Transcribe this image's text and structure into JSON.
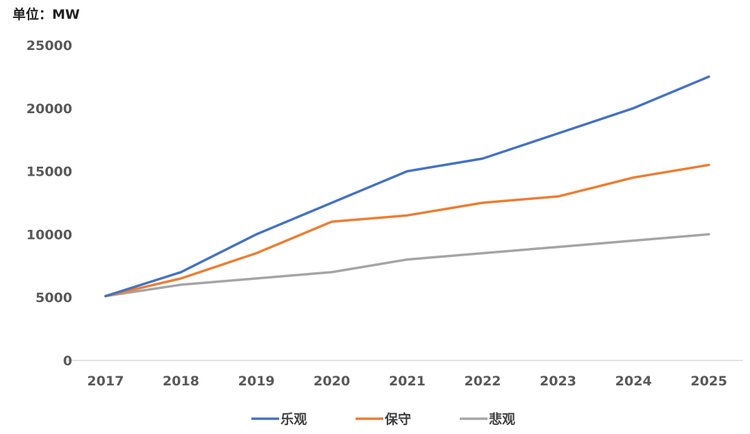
{
  "chart_data": {
    "type": "line",
    "unit_label": "单位：MW",
    "title": "",
    "xlabel": "",
    "ylabel": "",
    "categories": [
      "2017",
      "2018",
      "2019",
      "2020",
      "2021",
      "2022",
      "2023",
      "2024",
      "2025"
    ],
    "ylim": [
      0,
      25000
    ],
    "yticks": [
      0,
      5000,
      10000,
      15000,
      20000,
      25000
    ],
    "ytick_labels": [
      "0",
      "5000",
      "10000",
      "15000",
      "20000",
      "25000"
    ],
    "grid": false,
    "legend_position": "bottom",
    "series": [
      {
        "name": "乐观",
        "color": "#4472C4",
        "values": [
          5100,
          7000,
          10000,
          12500,
          15000,
          16000,
          18000,
          20000,
          22500
        ]
      },
      {
        "name": "保守",
        "color": "#ED7D31",
        "values": [
          5100,
          6500,
          8500,
          11000,
          11500,
          12500,
          13000,
          14500,
          15500
        ]
      },
      {
        "name": "悲观",
        "color": "#A5A5A5",
        "values": [
          5100,
          6000,
          6500,
          7000,
          8000,
          8500,
          9000,
          9500,
          10000
        ]
      }
    ]
  }
}
